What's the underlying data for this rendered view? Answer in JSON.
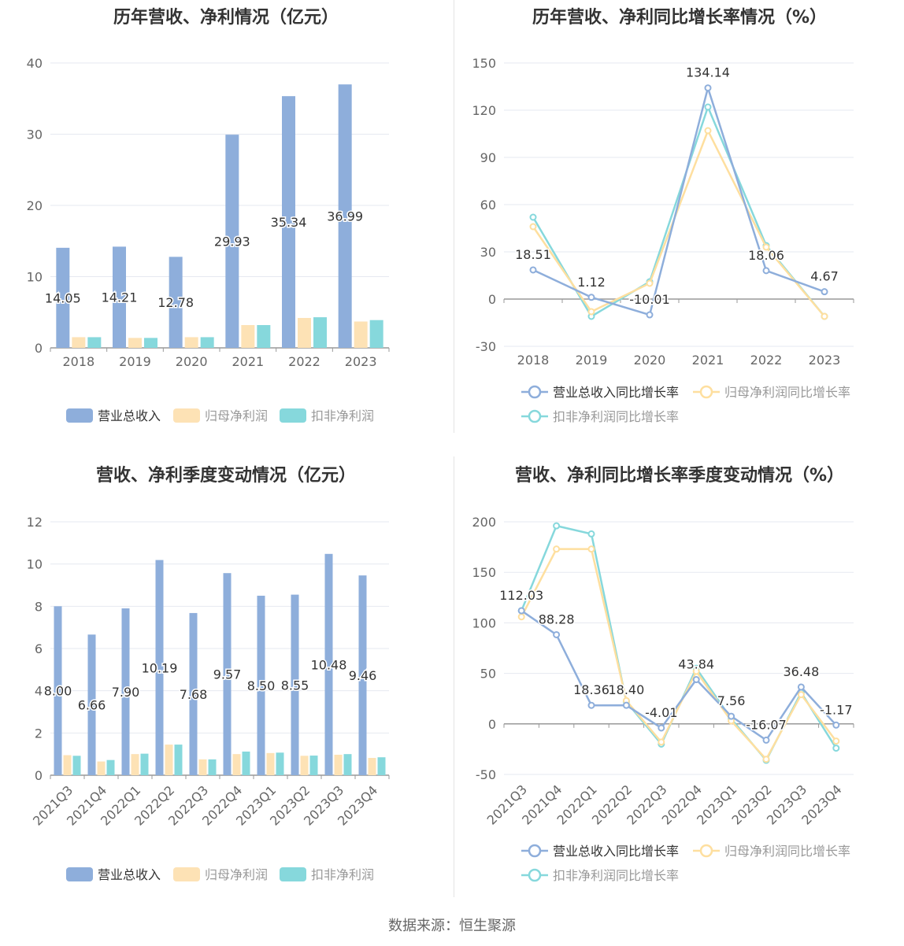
{
  "source_text": "数据来源：恒生聚源",
  "colors": {
    "revenue": "#8eaedb",
    "net_profit": "#fde2b5",
    "deducted_profit": "#86d8dc",
    "rev_line": "#8eaedb",
    "np_line": "#fedf9f",
    "dp_line": "#86d8dc"
  },
  "chart_data": [
    {
      "type": "bar",
      "title": "历年营收、净利情况（亿元）",
      "categories": [
        "2018",
        "2019",
        "2020",
        "2021",
        "2022",
        "2023"
      ],
      "ylim": [
        0,
        40
      ],
      "yticks": [
        0,
        10,
        20,
        30,
        40
      ],
      "series": [
        {
          "name": "营业总收入",
          "values": [
            14.05,
            14.21,
            12.78,
            29.93,
            35.34,
            36.99
          ],
          "labels": [
            "14.05",
            "14.21",
            "12.78",
            "29.93",
            "35.34",
            "36.99"
          ]
        },
        {
          "name": "归母净利润",
          "values": [
            1.5,
            1.4,
            1.5,
            3.2,
            4.2,
            3.7
          ]
        },
        {
          "name": "扣非净利润",
          "values": [
            1.5,
            1.4,
            1.5,
            3.2,
            4.3,
            3.9
          ]
        }
      ],
      "legend_position": "bottom"
    },
    {
      "type": "line",
      "title": "历年营收、净利同比增长率情况（%）",
      "categories": [
        "2018",
        "2019",
        "2020",
        "2021",
        "2022",
        "2023"
      ],
      "ylim": [
        -30,
        150
      ],
      "yticks": [
        -30,
        0,
        30,
        60,
        90,
        120,
        150
      ],
      "series": [
        {
          "name": "营业总收入同比增长率",
          "values": [
            18.51,
            1.12,
            -10.01,
            134.14,
            18.06,
            4.67
          ],
          "labels": [
            "18.51",
            "1.12",
            "-10.01",
            "134.14",
            "18.06",
            "4.67"
          ]
        },
        {
          "name": "归母净利润同比增长率",
          "values": [
            46,
            -8,
            10,
            107,
            33,
            -11
          ]
        },
        {
          "name": "扣非净利润同比增长率",
          "values": [
            52,
            -11,
            11,
            122,
            34,
            -11
          ]
        }
      ],
      "legend_position": "bottom"
    },
    {
      "type": "bar",
      "title": "营收、净利季度变动情况（亿元）",
      "categories": [
        "2021Q3",
        "2021Q4",
        "2022Q1",
        "2022Q2",
        "2022Q3",
        "2022Q4",
        "2023Q1",
        "2023Q2",
        "2023Q3",
        "2023Q4"
      ],
      "ylim": [
        0,
        12
      ],
      "yticks": [
        0,
        2,
        4,
        6,
        8,
        10,
        12
      ],
      "series": [
        {
          "name": "营业总收入",
          "values": [
            8.0,
            6.66,
            7.9,
            10.19,
            7.68,
            9.57,
            8.5,
            8.55,
            10.48,
            9.46
          ],
          "labels": [
            "8.00",
            "6.66",
            "7.90",
            "10.19",
            "7.68",
            "9.57",
            "8.50",
            "8.55",
            "10.48",
            "9.46"
          ]
        },
        {
          "name": "归母净利润",
          "values": [
            0.95,
            0.65,
            1.0,
            1.45,
            0.75,
            1.0,
            1.05,
            0.92,
            0.97,
            0.82
          ]
        },
        {
          "name": "扣非净利润",
          "values": [
            0.92,
            0.72,
            1.02,
            1.45,
            0.75,
            1.12,
            1.07,
            0.93,
            1.0,
            0.85
          ]
        }
      ],
      "legend_position": "bottom"
    },
    {
      "type": "line",
      "title": "营收、净利同比增长率季度变动情况（%）",
      "categories": [
        "2021Q3",
        "2021Q4",
        "2022Q1",
        "2022Q2",
        "2022Q3",
        "2022Q4",
        "2023Q1",
        "2023Q2",
        "2023Q3",
        "2023Q4"
      ],
      "ylim": [
        -50,
        200
      ],
      "yticks": [
        -50,
        0,
        50,
        100,
        150,
        200
      ],
      "series": [
        {
          "name": "营业总收入同比增长率",
          "values": [
            112.03,
            88.28,
            18.36,
            18.4,
            -4.01,
            43.84,
            7.56,
            -16.07,
            36.48,
            -1.17
          ],
          "labels": [
            "112.03",
            "88.28",
            "18.36",
            "18.40",
            "-4.01",
            "43.84",
            "7.56",
            "-16.07",
            "36.48",
            "-1.17"
          ]
        },
        {
          "name": "归母净利润同比增长率",
          "values": [
            106,
            173,
            173,
            23,
            -18,
            52,
            3,
            -35,
            29,
            -17
          ]
        },
        {
          "name": "扣非净利润同比增长率",
          "values": [
            112,
            196,
            188,
            22,
            -20,
            55,
            5,
            -36,
            31,
            -24
          ]
        }
      ],
      "legend_position": "bottom"
    }
  ]
}
